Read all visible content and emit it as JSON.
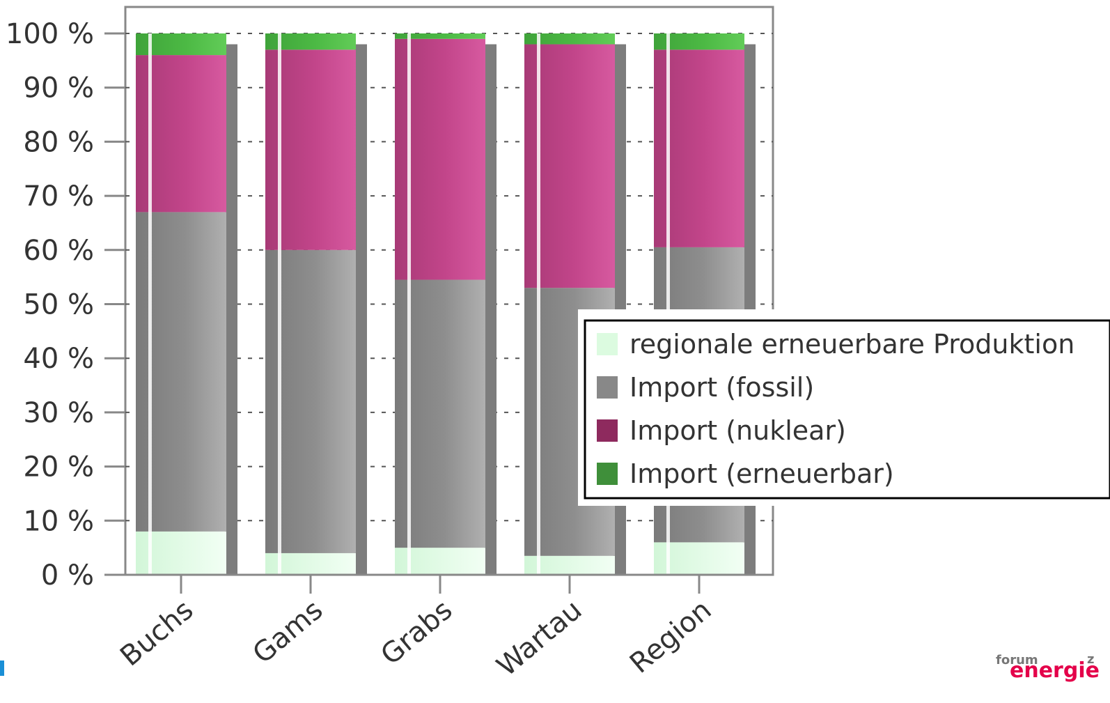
{
  "chart_data": {
    "type": "bar",
    "stacked": true,
    "normalized": true,
    "title": "",
    "xlabel": "",
    "ylabel": "",
    "ylim": [
      0,
      100
    ],
    "yticks": [
      "0 %",
      "10 %",
      "20 %",
      "30 %",
      "40 %",
      "50 %",
      "60 %",
      "70 %",
      "80 %",
      "90 %",
      "100 %"
    ],
    "grid": true,
    "legend_position": "right",
    "categories": [
      "Buchs",
      "Gams",
      "Grabs",
      "Wartau",
      "Region"
    ],
    "series": [
      {
        "name": "regionale erneuerbare Produktion",
        "color": "#dcfbe0",
        "values": [
          8,
          4,
          5,
          3.5,
          6
        ]
      },
      {
        "name": "Import (fossil)",
        "color": "#8c8c8c",
        "values": [
          59,
          56,
          49.5,
          49.5,
          54.5
        ]
      },
      {
        "name": "Import (nuklear)",
        "color": "#c2458a",
        "values": [
          29,
          37,
          44.5,
          45,
          36.5
        ]
      },
      {
        "name": "Import (erneuerbar)",
        "color": "#4cb944",
        "values": [
          4,
          3,
          1,
          2,
          3
        ]
      }
    ]
  },
  "logo": {
    "top": "forum",
    "main": "energie",
    "suffix": "z"
  }
}
